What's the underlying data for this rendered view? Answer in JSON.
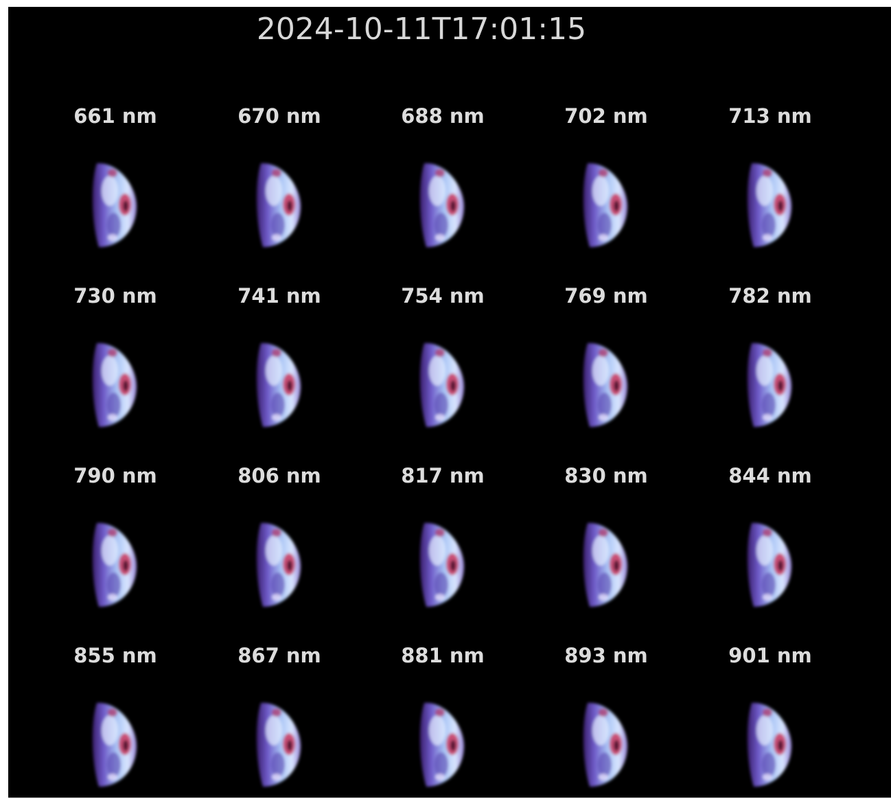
{
  "title": "2024-10-11T17:01:15",
  "panels": [
    "661 nm",
    "670 nm",
    "688 nm",
    "702 nm",
    "713 nm",
    "730 nm",
    "741 nm",
    "754 nm",
    "769 nm",
    "782 nm",
    "790 nm",
    "806 nm",
    "817 nm",
    "830 nm",
    "844 nm",
    "855 nm",
    "867 nm",
    "881 nm",
    "893 nm",
    "901 nm"
  ]
}
